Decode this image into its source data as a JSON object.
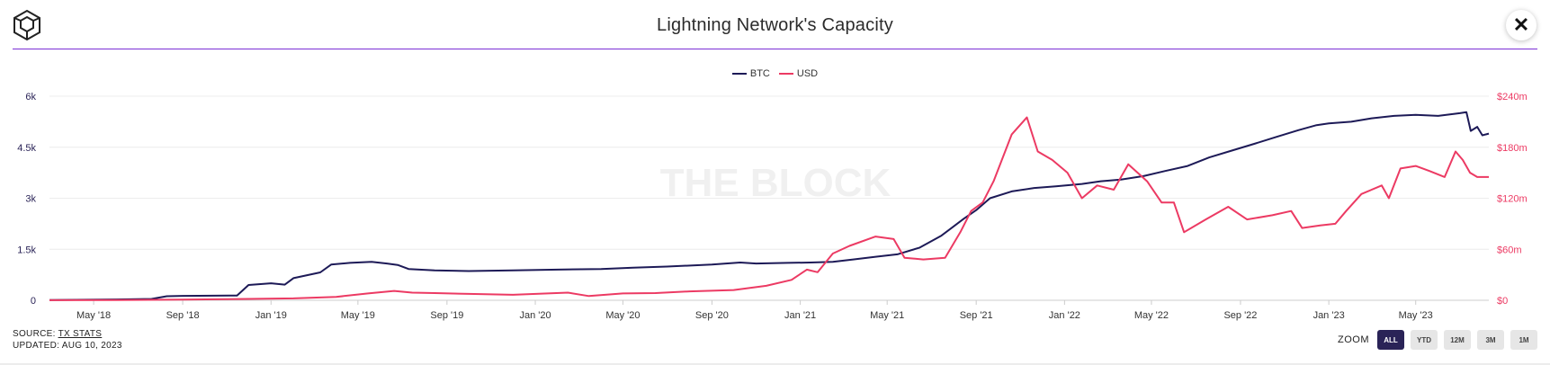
{
  "header": {
    "title": "Lightning Network's Capacity",
    "logo_icon": "the-block-cube-icon",
    "close_icon": "close-icon",
    "close_label": "✕"
  },
  "legend": [
    {
      "name": "BTC",
      "color": "#1d1a57"
    },
    {
      "name": "USD",
      "color": "#ec3a63"
    }
  ],
  "watermark": "THE BLOCK",
  "footer": {
    "source_prefix": "SOURCE: ",
    "source_link": "TX STATS",
    "updated": "UPDATED: AUG 10, 2023"
  },
  "zoom": {
    "label": "ZOOM",
    "buttons": [
      "ALL",
      "YTD",
      "12M",
      "3M",
      "1M"
    ],
    "selected": "ALL"
  },
  "chart_data": {
    "type": "line",
    "x_range": [
      "2018-03-01",
      "2023-08-10"
    ],
    "x_ticks": [
      "May '18",
      "Sep '18",
      "Jan '19",
      "May '19",
      "Sep '19",
      "Jan '20",
      "May '20",
      "Sep '20",
      "Jan '21",
      "May '21",
      "Sep '21",
      "Jan '22",
      "May '22",
      "Sep '22",
      "Jan '23",
      "May '23"
    ],
    "y_left": {
      "ticks": [
        "0",
        "1.5k",
        "3k",
        "4.5k",
        "6k"
      ],
      "min": 0,
      "max": 6000
    },
    "y_right": {
      "ticks": [
        "$0",
        "$60m",
        "$120m",
        "$180m",
        "$240m"
      ],
      "min": 0,
      "max": 240000000
    },
    "grid": true,
    "legend_position": "top-center",
    "series": [
      {
        "name": "BTC",
        "axis": "left",
        "color": "#1d1a57",
        "points": [
          [
            "2018-03-01",
            5
          ],
          [
            "2018-06-01",
            25
          ],
          [
            "2018-07-20",
            40
          ],
          [
            "2018-08-10",
            120
          ],
          [
            "2018-09-01",
            130
          ],
          [
            "2018-11-15",
            140
          ],
          [
            "2018-12-01",
            450
          ],
          [
            "2019-01-01",
            500
          ],
          [
            "2019-01-20",
            460
          ],
          [
            "2019-02-01",
            650
          ],
          [
            "2019-03-10",
            820
          ],
          [
            "2019-03-25",
            1050
          ],
          [
            "2019-04-20",
            1100
          ],
          [
            "2019-05-20",
            1130
          ],
          [
            "2019-06-10",
            1080
          ],
          [
            "2019-06-25",
            1040
          ],
          [
            "2019-07-10",
            920
          ],
          [
            "2019-08-15",
            880
          ],
          [
            "2019-10-01",
            860
          ],
          [
            "2019-12-01",
            880
          ],
          [
            "2020-02-01",
            900
          ],
          [
            "2020-04-01",
            920
          ],
          [
            "2020-05-15",
            960
          ],
          [
            "2020-07-01",
            990
          ],
          [
            "2020-09-01",
            1050
          ],
          [
            "2020-10-10",
            1110
          ],
          [
            "2020-11-01",
            1080
          ],
          [
            "2020-12-15",
            1100
          ],
          [
            "2021-01-15",
            1110
          ],
          [
            "2021-02-15",
            1130
          ],
          [
            "2021-03-15",
            1200
          ],
          [
            "2021-04-15",
            1280
          ],
          [
            "2021-05-15",
            1350
          ],
          [
            "2021-06-15",
            1550
          ],
          [
            "2021-07-15",
            1900
          ],
          [
            "2021-08-15",
            2400
          ],
          [
            "2021-09-01",
            2650
          ],
          [
            "2021-09-20",
            3000
          ],
          [
            "2021-10-20",
            3200
          ],
          [
            "2021-11-20",
            3300
          ],
          [
            "2021-12-20",
            3350
          ],
          [
            "2022-01-25",
            3420
          ],
          [
            "2022-02-20",
            3500
          ],
          [
            "2022-03-20",
            3550
          ],
          [
            "2022-04-20",
            3650
          ],
          [
            "2022-05-20",
            3800
          ],
          [
            "2022-06-20",
            3950
          ],
          [
            "2022-07-20",
            4200
          ],
          [
            "2022-08-20",
            4400
          ],
          [
            "2022-09-20",
            4600
          ],
          [
            "2022-10-20",
            4800
          ],
          [
            "2022-11-20",
            5000
          ],
          [
            "2022-12-15",
            5150
          ],
          [
            "2023-01-01",
            5200
          ],
          [
            "2023-02-01",
            5250
          ],
          [
            "2023-03-01",
            5350
          ],
          [
            "2023-04-01",
            5420
          ],
          [
            "2023-05-01",
            5450
          ],
          [
            "2023-06-01",
            5420
          ],
          [
            "2023-07-01",
            5500
          ],
          [
            "2023-07-10",
            5530
          ],
          [
            "2023-07-16",
            4980
          ],
          [
            "2023-07-25",
            5100
          ],
          [
            "2023-08-01",
            4850
          ],
          [
            "2023-08-10",
            4900
          ]
        ]
      },
      {
        "name": "USD",
        "axis": "right",
        "color": "#ec3a63",
        "points": [
          [
            "2018-03-01",
            100000
          ],
          [
            "2018-06-01",
            250000
          ],
          [
            "2018-09-01",
            700000
          ],
          [
            "2018-12-01",
            1600000
          ],
          [
            "2019-02-01",
            2200000
          ],
          [
            "2019-04-01",
            4000000
          ],
          [
            "2019-05-15",
            8000000
          ],
          [
            "2019-06-20",
            11000000
          ],
          [
            "2019-07-15",
            9000000
          ],
          [
            "2019-08-15",
            8500000
          ],
          [
            "2019-10-01",
            7500000
          ],
          [
            "2019-12-01",
            6500000
          ],
          [
            "2020-02-15",
            9000000
          ],
          [
            "2020-03-15",
            5000000
          ],
          [
            "2020-05-01",
            8000000
          ],
          [
            "2020-06-15",
            8500000
          ],
          [
            "2020-08-01",
            10500000
          ],
          [
            "2020-10-01",
            12000000
          ],
          [
            "2020-11-15",
            17000000
          ],
          [
            "2020-12-20",
            24000000
          ],
          [
            "2021-01-10",
            36000000
          ],
          [
            "2021-01-25",
            33000000
          ],
          [
            "2021-02-15",
            55000000
          ],
          [
            "2021-03-10",
            64000000
          ],
          [
            "2021-04-15",
            75000000
          ],
          [
            "2021-05-10",
            72000000
          ],
          [
            "2021-05-25",
            50000000
          ],
          [
            "2021-06-20",
            48000000
          ],
          [
            "2021-07-20",
            50000000
          ],
          [
            "2021-08-10",
            80000000
          ],
          [
            "2021-08-25",
            105000000
          ],
          [
            "2021-09-10",
            115000000
          ],
          [
            "2021-09-25",
            140000000
          ],
          [
            "2021-10-20",
            195000000
          ],
          [
            "2021-11-10",
            215000000
          ],
          [
            "2021-11-25",
            175000000
          ],
          [
            "2021-12-15",
            165000000
          ],
          [
            "2022-01-05",
            150000000
          ],
          [
            "2022-01-25",
            120000000
          ],
          [
            "2022-02-15",
            135000000
          ],
          [
            "2022-03-10",
            130000000
          ],
          [
            "2022-03-30",
            160000000
          ],
          [
            "2022-04-25",
            140000000
          ],
          [
            "2022-05-15",
            115000000
          ],
          [
            "2022-06-01",
            115000000
          ],
          [
            "2022-06-15",
            80000000
          ],
          [
            "2022-07-15",
            95000000
          ],
          [
            "2022-08-15",
            110000000
          ],
          [
            "2022-09-10",
            95000000
          ],
          [
            "2022-10-15",
            100000000
          ],
          [
            "2022-11-10",
            105000000
          ],
          [
            "2022-11-25",
            85000000
          ],
          [
            "2022-12-20",
            88000000
          ],
          [
            "2023-01-10",
            90000000
          ],
          [
            "2023-01-25",
            105000000
          ],
          [
            "2023-02-15",
            125000000
          ],
          [
            "2023-03-15",
            135000000
          ],
          [
            "2023-03-25",
            120000000
          ],
          [
            "2023-04-10",
            155000000
          ],
          [
            "2023-05-01",
            158000000
          ],
          [
            "2023-05-20",
            152000000
          ],
          [
            "2023-06-10",
            145000000
          ],
          [
            "2023-06-25",
            175000000
          ],
          [
            "2023-07-05",
            165000000
          ],
          [
            "2023-07-15",
            150000000
          ],
          [
            "2023-07-25",
            145000000
          ],
          [
            "2023-08-10",
            145000000
          ]
        ]
      }
    ]
  }
}
